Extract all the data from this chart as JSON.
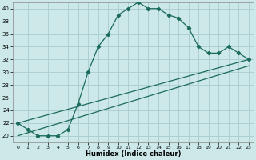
{
  "xlabel": "Humidex (Indice chaleur)",
  "background_color": "#cce8e8",
  "grid_color": "#aacccc",
  "line_color": "#1a6b5a",
  "xlim": [
    -0.5,
    23.5
  ],
  "ylim": [
    19,
    41
  ],
  "ytick_vals": [
    20,
    22,
    24,
    26,
    28,
    30,
    32,
    34,
    36,
    38,
    40
  ],
  "xtick_vals": [
    0,
    1,
    2,
    3,
    4,
    5,
    6,
    7,
    8,
    9,
    10,
    11,
    12,
    13,
    14,
    15,
    16,
    17,
    18,
    19,
    20,
    21,
    22,
    23
  ],
  "series1_x": [
    0,
    1,
    2,
    3,
    4,
    5,
    6,
    7,
    8,
    9,
    10,
    11,
    12,
    13,
    14,
    15,
    16,
    17,
    18,
    19,
    20,
    21,
    22,
    23
  ],
  "series1_y": [
    22,
    21,
    20,
    20,
    20,
    21,
    25,
    30,
    34,
    36,
    39,
    40,
    41,
    40,
    40,
    39,
    38.5,
    37,
    34,
    33,
    33,
    34,
    33,
    32
  ],
  "series2_x": [
    0,
    23
  ],
  "series2_y": [
    22,
    32
  ],
  "series3_x": [
    0,
    23
  ],
  "series3_y": [
    20,
    31
  ]
}
